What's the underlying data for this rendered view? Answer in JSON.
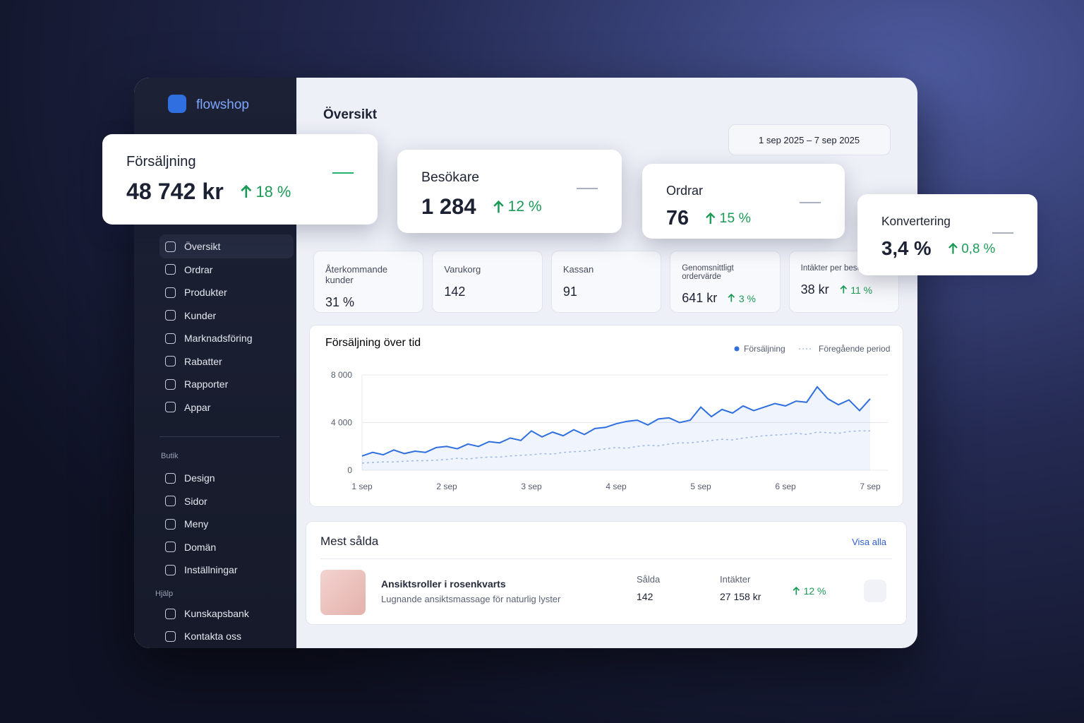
{
  "brand": "flowshop",
  "header": {
    "title": "Översikt",
    "date_range": "1 sep 2025 – 7 sep 2025"
  },
  "kpis": [
    {
      "label": "Försäljning",
      "value": "48 742 kr",
      "change": "18 %"
    },
    {
      "label": "Besökare",
      "value": "1 284",
      "change": "12 %"
    },
    {
      "label": "Ordrar",
      "value": "76",
      "change": "15 %"
    },
    {
      "label": "Konvertering",
      "value": "3,4 %",
      "change": "0,8 %"
    }
  ],
  "metrics": [
    {
      "label": "Återkommande kunder",
      "value": "31 %"
    },
    {
      "label": "Varukorg",
      "value": "142"
    },
    {
      "label": "Kassan",
      "value": "91"
    },
    {
      "label": "Genomsnittligt ordervärde",
      "value": "641 kr",
      "change": "3 %"
    },
    {
      "label": "Intäkter per besökare",
      "value": "38 kr",
      "change": "11 %"
    }
  ],
  "nav": {
    "main": [
      "Översikt",
      "Ordrar",
      "Produkter",
      "Kunder",
      "Marknadsföring",
      "Rabatter",
      "Rapporter",
      "Appar"
    ],
    "store_heading": "Butik",
    "store": [
      "Design",
      "Sidor",
      "Meny",
      "Domän",
      "Inställningar"
    ],
    "help_heading": "Hjälp",
    "help": [
      "Kunskapsbank",
      "Kontakta oss"
    ]
  },
  "chart_data": {
    "type": "line",
    "title": "Försäljning över tid",
    "categories": [
      "1 sep",
      null,
      null,
      null,
      null,
      null,
      null,
      null,
      "2 sep",
      null,
      null,
      null,
      null,
      null,
      null,
      null,
      "3 sep",
      null,
      null,
      null,
      null,
      null,
      null,
      null,
      "4 sep",
      null,
      null,
      null,
      null,
      null,
      null,
      null,
      "5 sep",
      null,
      null,
      null,
      null,
      null,
      null,
      null,
      "6 sep",
      null,
      null,
      null,
      null,
      null,
      null,
      null,
      "7 sep"
    ],
    "series": [
      {
        "name": "Försäljning",
        "color": "#2f6fe0",
        "values": [
          1200,
          1500,
          1300,
          1700,
          1400,
          1600,
          1500,
          1900,
          2000,
          1800,
          2200,
          2000,
          2400,
          2300,
          2700,
          2500,
          3300,
          2800,
          3200,
          2900,
          3400,
          3000,
          3500,
          3600,
          3900,
          4100,
          4200,
          3800,
          4300,
          4400,
          4000,
          4200,
          5300,
          4500,
          5100,
          4800,
          5400,
          5000,
          5300,
          5600,
          5400,
          5800,
          5700,
          7000,
          6000,
          5500,
          5900,
          5000,
          6000
        ]
      },
      {
        "name": "Föregående period",
        "color": "#a9bde6",
        "values": [
          600,
          650,
          700,
          700,
          750,
          800,
          800,
          850,
          900,
          1000,
          950,
          1050,
          1100,
          1100,
          1200,
          1250,
          1300,
          1400,
          1350,
          1500,
          1550,
          1600,
          1700,
          1800,
          1900,
          1850,
          2000,
          2100,
          2050,
          2200,
          2300,
          2300,
          2400,
          2500,
          2600,
          2550,
          2700,
          2800,
          2900,
          2950,
          3000,
          3100,
          3000,
          3200,
          3150,
          3100,
          3250,
          3300,
          3300
        ]
      }
    ],
    "ylim": [
      0,
      8000
    ],
    "yticks": [
      0,
      {
        "value": 4000,
        "label": "4 000"
      },
      {
        "value": 8000,
        "label": "8 000"
      }
    ],
    "grid": true
  },
  "top_products": {
    "title": "Mest sålda",
    "link": "Visa alla",
    "columns": [
      "Sålda",
      "Intäkter"
    ],
    "rows": [
      {
        "name": "Ansiktsroller i rosenkvarts",
        "description": "Lugnande ansiktsmassage för naturlig lyster",
        "sold": "142",
        "revenue": "27 158 kr",
        "change": "12 %"
      }
    ]
  }
}
